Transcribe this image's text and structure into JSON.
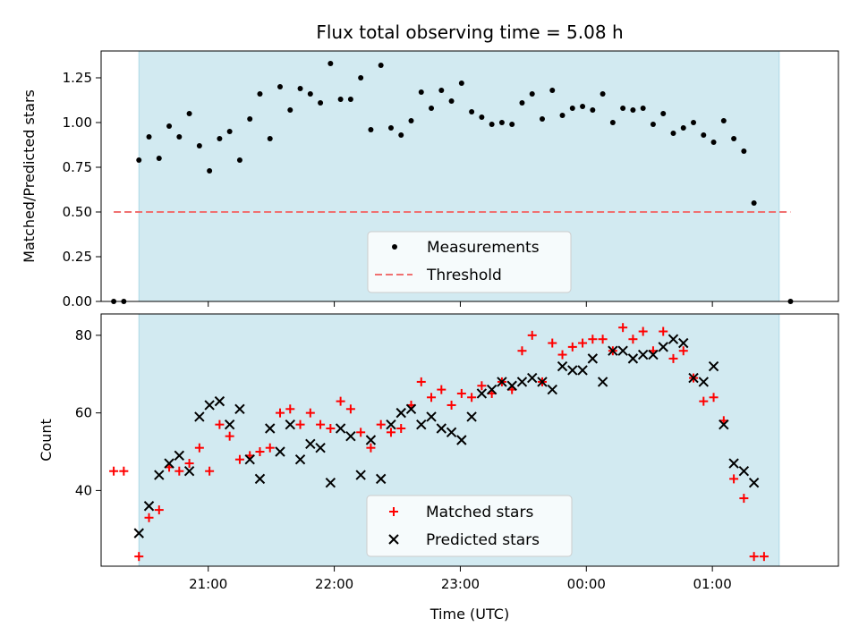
{
  "chart_data": [
    {
      "type": "scatter",
      "title": "Flux total observing time = 5.08 h",
      "xlabel": "",
      "ylabel": "Matched/Predicted stars",
      "x_unit": "hours since 20:00 UTC",
      "xlim": [
        0.15,
        6.0
      ],
      "ylim": [
        0.0,
        1.4
      ],
      "yticks": [
        "0.00",
        "0.25",
        "0.50",
        "0.75",
        "1.00",
        "1.25"
      ],
      "ytick_values": [
        0.0,
        0.25,
        0.5,
        0.75,
        1.0,
        1.25
      ],
      "observing_window": [
        0.45,
        5.53
      ],
      "window_color": "#add8e6",
      "threshold": {
        "name": "Threshold",
        "value": 0.5,
        "x_range": [
          0.25,
          5.62
        ],
        "color": "#f07070"
      },
      "legend": [
        "Measurements",
        "Threshold"
      ],
      "legend_location": "lower center",
      "series": [
        {
          "name": "Measurements",
          "color": "#000000",
          "points": [
            [
              0.25,
              0.0
            ],
            [
              0.33,
              0.0
            ],
            [
              0.45,
              0.79
            ],
            [
              0.53,
              0.92
            ],
            [
              0.61,
              0.8
            ],
            [
              0.69,
              0.98
            ],
            [
              0.77,
              0.92
            ],
            [
              0.85,
              1.05
            ],
            [
              0.93,
              0.87
            ],
            [
              1.01,
              0.73
            ],
            [
              1.09,
              0.91
            ],
            [
              1.17,
              0.95
            ],
            [
              1.25,
              0.79
            ],
            [
              1.33,
              1.02
            ],
            [
              1.41,
              1.16
            ],
            [
              1.49,
              0.91
            ],
            [
              1.57,
              1.2
            ],
            [
              1.65,
              1.07
            ],
            [
              1.73,
              1.19
            ],
            [
              1.81,
              1.16
            ],
            [
              1.89,
              1.11
            ],
            [
              1.97,
              1.33
            ],
            [
              2.05,
              1.13
            ],
            [
              2.13,
              1.13
            ],
            [
              2.21,
              1.25
            ],
            [
              2.29,
              0.96
            ],
            [
              2.37,
              1.32
            ],
            [
              2.45,
              0.97
            ],
            [
              2.53,
              0.93
            ],
            [
              2.61,
              1.01
            ],
            [
              2.69,
              1.17
            ],
            [
              2.77,
              1.08
            ],
            [
              2.85,
              1.18
            ],
            [
              2.93,
              1.12
            ],
            [
              3.01,
              1.22
            ],
            [
              3.09,
              1.06
            ],
            [
              3.17,
              1.03
            ],
            [
              3.25,
              0.99
            ],
            [
              3.33,
              1.0
            ],
            [
              3.41,
              0.99
            ],
            [
              3.49,
              1.11
            ],
            [
              3.57,
              1.16
            ],
            [
              3.65,
              1.02
            ],
            [
              3.73,
              1.18
            ],
            [
              3.81,
              1.04
            ],
            [
              3.89,
              1.08
            ],
            [
              3.97,
              1.09
            ],
            [
              4.05,
              1.07
            ],
            [
              4.13,
              1.16
            ],
            [
              4.21,
              1.0
            ],
            [
              4.29,
              1.08
            ],
            [
              4.37,
              1.07
            ],
            [
              4.45,
              1.08
            ],
            [
              4.53,
              0.99
            ],
            [
              4.61,
              1.05
            ],
            [
              4.69,
              0.94
            ],
            [
              4.77,
              0.97
            ],
            [
              4.85,
              1.0
            ],
            [
              4.93,
              0.93
            ],
            [
              5.01,
              0.89
            ],
            [
              5.09,
              1.01
            ],
            [
              5.17,
              0.91
            ],
            [
              5.25,
              0.84
            ],
            [
              5.33,
              0.55
            ],
            [
              5.62,
              0.0
            ]
          ]
        }
      ]
    },
    {
      "type": "scatter",
      "title": "",
      "xlabel": "Time (UTC)",
      "ylabel": "Count",
      "x_unit": "hours since 20:00 UTC",
      "xlim": [
        0.15,
        6.0
      ],
      "ylim": [
        20.5,
        85.5
      ],
      "yticks": [
        "40",
        "60",
        "80"
      ],
      "ytick_values": [
        40,
        60,
        80
      ],
      "xticks": [
        "21:00",
        "22:00",
        "23:00",
        "00:00",
        "01:00"
      ],
      "xtick_values": [
        1,
        2,
        3,
        4,
        5
      ],
      "observing_window": [
        0.45,
        5.53
      ],
      "window_color": "#add8e6",
      "legend": [
        "Matched stars",
        "Predicted stars"
      ],
      "legend_location": "lower center",
      "series": [
        {
          "name": "Matched stars",
          "marker": "plus",
          "color": "#ff0000",
          "points": [
            [
              0.25,
              45
            ],
            [
              0.33,
              45
            ],
            [
              0.45,
              23
            ],
            [
              0.53,
              33
            ],
            [
              0.61,
              35
            ],
            [
              0.69,
              46
            ],
            [
              0.77,
              45
            ],
            [
              0.85,
              47
            ],
            [
              0.93,
              51
            ],
            [
              1.01,
              45
            ],
            [
              1.09,
              57
            ],
            [
              1.17,
              54
            ],
            [
              1.25,
              48
            ],
            [
              1.33,
              49
            ],
            [
              1.41,
              50
            ],
            [
              1.49,
              51
            ],
            [
              1.57,
              60
            ],
            [
              1.65,
              61
            ],
            [
              1.73,
              57
            ],
            [
              1.81,
              60
            ],
            [
              1.89,
              57
            ],
            [
              1.97,
              56
            ],
            [
              2.05,
              63
            ],
            [
              2.13,
              61
            ],
            [
              2.21,
              55
            ],
            [
              2.29,
              51
            ],
            [
              2.37,
              57
            ],
            [
              2.45,
              55
            ],
            [
              2.53,
              56
            ],
            [
              2.61,
              62
            ],
            [
              2.69,
              68
            ],
            [
              2.77,
              64
            ],
            [
              2.85,
              66
            ],
            [
              2.93,
              62
            ],
            [
              3.01,
              65
            ],
            [
              3.09,
              64
            ],
            [
              3.17,
              67
            ],
            [
              3.25,
              65
            ],
            [
              3.33,
              68
            ],
            [
              3.41,
              66
            ],
            [
              3.49,
              76
            ],
            [
              3.57,
              80
            ],
            [
              3.65,
              68
            ],
            [
              3.73,
              78
            ],
            [
              3.81,
              75
            ],
            [
              3.89,
              77
            ],
            [
              3.97,
              78
            ],
            [
              4.05,
              79
            ],
            [
              4.13,
              79
            ],
            [
              4.21,
              76
            ],
            [
              4.29,
              82
            ],
            [
              4.37,
              79
            ],
            [
              4.45,
              81
            ],
            [
              4.53,
              76
            ],
            [
              4.61,
              81
            ],
            [
              4.69,
              74
            ],
            [
              4.77,
              76
            ],
            [
              4.85,
              69
            ],
            [
              4.93,
              63
            ],
            [
              5.01,
              64
            ],
            [
              5.09,
              58
            ],
            [
              5.17,
              43
            ],
            [
              5.25,
              38
            ],
            [
              5.33,
              23
            ],
            [
              5.41,
              23
            ]
          ]
        },
        {
          "name": "Predicted stars",
          "marker": "x",
          "color": "#000000",
          "points": [
            [
              0.45,
              29
            ],
            [
              0.53,
              36
            ],
            [
              0.61,
              44
            ],
            [
              0.69,
              47
            ],
            [
              0.77,
              49
            ],
            [
              0.85,
              45
            ],
            [
              0.93,
              59
            ],
            [
              1.01,
              62
            ],
            [
              1.09,
              63
            ],
            [
              1.17,
              57
            ],
            [
              1.25,
              61
            ],
            [
              1.33,
              48
            ],
            [
              1.41,
              43
            ],
            [
              1.49,
              56
            ],
            [
              1.57,
              50
            ],
            [
              1.65,
              57
            ],
            [
              1.73,
              48
            ],
            [
              1.81,
              52
            ],
            [
              1.89,
              51
            ],
            [
              1.97,
              42
            ],
            [
              2.05,
              56
            ],
            [
              2.13,
              54
            ],
            [
              2.21,
              44
            ],
            [
              2.29,
              53
            ],
            [
              2.37,
              43
            ],
            [
              2.45,
              57
            ],
            [
              2.53,
              60
            ],
            [
              2.61,
              61
            ],
            [
              2.69,
              57
            ],
            [
              2.77,
              59
            ],
            [
              2.85,
              56
            ],
            [
              2.93,
              55
            ],
            [
              3.01,
              53
            ],
            [
              3.09,
              59
            ],
            [
              3.17,
              65
            ],
            [
              3.25,
              66
            ],
            [
              3.33,
              68
            ],
            [
              3.41,
              67
            ],
            [
              3.49,
              68
            ],
            [
              3.57,
              69
            ],
            [
              3.65,
              68
            ],
            [
              3.73,
              66
            ],
            [
              3.81,
              72
            ],
            [
              3.89,
              71
            ],
            [
              3.97,
              71
            ],
            [
              4.05,
              74
            ],
            [
              4.13,
              68
            ],
            [
              4.21,
              76
            ],
            [
              4.29,
              76
            ],
            [
              4.37,
              74
            ],
            [
              4.45,
              75
            ],
            [
              4.53,
              75
            ],
            [
              4.61,
              77
            ],
            [
              4.69,
              79
            ],
            [
              4.77,
              78
            ],
            [
              4.85,
              69
            ],
            [
              4.93,
              68
            ],
            [
              5.01,
              72
            ],
            [
              5.09,
              57
            ],
            [
              5.17,
              47
            ],
            [
              5.25,
              45
            ],
            [
              5.33,
              42
            ]
          ]
        }
      ]
    }
  ]
}
